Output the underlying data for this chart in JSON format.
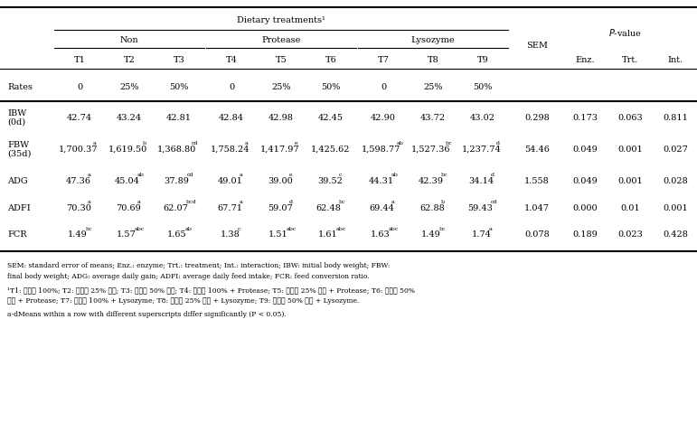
{
  "title": "Dietary treatments¹",
  "col_headers": [
    "T1",
    "T2",
    "T3",
    "T4",
    "T5",
    "T6",
    "T7",
    "T8",
    "T9"
  ],
  "rates": [
    "0",
    "25%",
    "50%",
    "0",
    "25%",
    "50%",
    "0",
    "25%",
    "50%"
  ],
  "data": [
    {
      "label1": "IBW",
      "label2": "(0d)",
      "values": [
        "42.74",
        "43.24",
        "42.81",
        "42.84",
        "42.98",
        "42.45",
        "42.90",
        "43.72",
        "43.02"
      ],
      "superscripts": [
        "",
        "",
        "",
        "",
        "",
        "",
        "",
        "",
        ""
      ],
      "sem": "0.298",
      "enz": "0.173",
      "trt": "0.063",
      "int": "0.811"
    },
    {
      "label1": "FBW",
      "label2": "(35d)",
      "values": [
        "1,700.37",
        "1,619.50",
        "1,368.80",
        "1,758.24",
        "1,417.97",
        "1,425.62",
        "1,598.77",
        "1,527.36",
        "1,237.74"
      ],
      "superscripts": [
        "a",
        "b",
        "cd",
        "a",
        "e",
        "",
        "ab",
        "bc",
        "d"
      ],
      "sem": "54.46",
      "enz": "0.049",
      "trt": "0.001",
      "int": "0.027"
    },
    {
      "label1": "ADG",
      "label2": "",
      "values": [
        "47.36",
        "45.04",
        "37.89",
        "49.01",
        "39.00",
        "39.52",
        "44.31",
        "42.39",
        "34.14"
      ],
      "superscripts": [
        "a",
        "ab",
        "cd",
        "a",
        "e",
        "c",
        "ab",
        "bc",
        "d"
      ],
      "sem": "1.558",
      "enz": "0.049",
      "trt": "0.001",
      "int": "0.028"
    },
    {
      "label1": "ADFI",
      "label2": "",
      "values": [
        "70.30",
        "70.69",
        "62.07",
        "67.71",
        "59.07",
        "62.48",
        "69.44",
        "62.88",
        "59.43"
      ],
      "superscripts": [
        "a",
        "a",
        "bcd",
        "a",
        "d",
        "bc",
        "a",
        "b",
        "cd"
      ],
      "sem": "1.047",
      "enz": "0.000",
      "trt": "0.01",
      "int": "0.001"
    },
    {
      "label1": "FCR",
      "label2": "",
      "values": [
        "1.49",
        "1.57",
        "1.65",
        "1.38",
        "1.51",
        "1.61",
        "1.63",
        "1.49",
        "1.74"
      ],
      "superscripts": [
        "bc",
        "abc",
        "ab",
        "c",
        "abc",
        "abc",
        "abc",
        "bc",
        "a"
      ],
      "sem": "0.078",
      "enz": "0.189",
      "trt": "0.023",
      "int": "0.428"
    }
  ],
  "footnote1": "SEM: standard error of means; Enz.: enzyme; Trt.: treatment; Int.: interaction; IBW: initial body weight; FBW: final body weight; ADG: average daily gain; ADFI: average daily feed intake; FCR: feed conversion ratio.",
  "footnote2": "¹T1: 대두박 100%; T2: 유층박 25% 대체; T3: 유층박 50% 대체; T4: 대두박 100% + Protease; T5: 유층박 25% 대체 + Protease; T6: 유층박 50% 대체 + Protease; T7: 대두박 100% + Lysozyme; T8: 유층박 25% 대체 + Lysozyme; T9: 유층박 50% 대체 + Lysozyme.",
  "footnote3": "a-dMeans within a row with different superscripts differ significantly (P < 0.05)."
}
